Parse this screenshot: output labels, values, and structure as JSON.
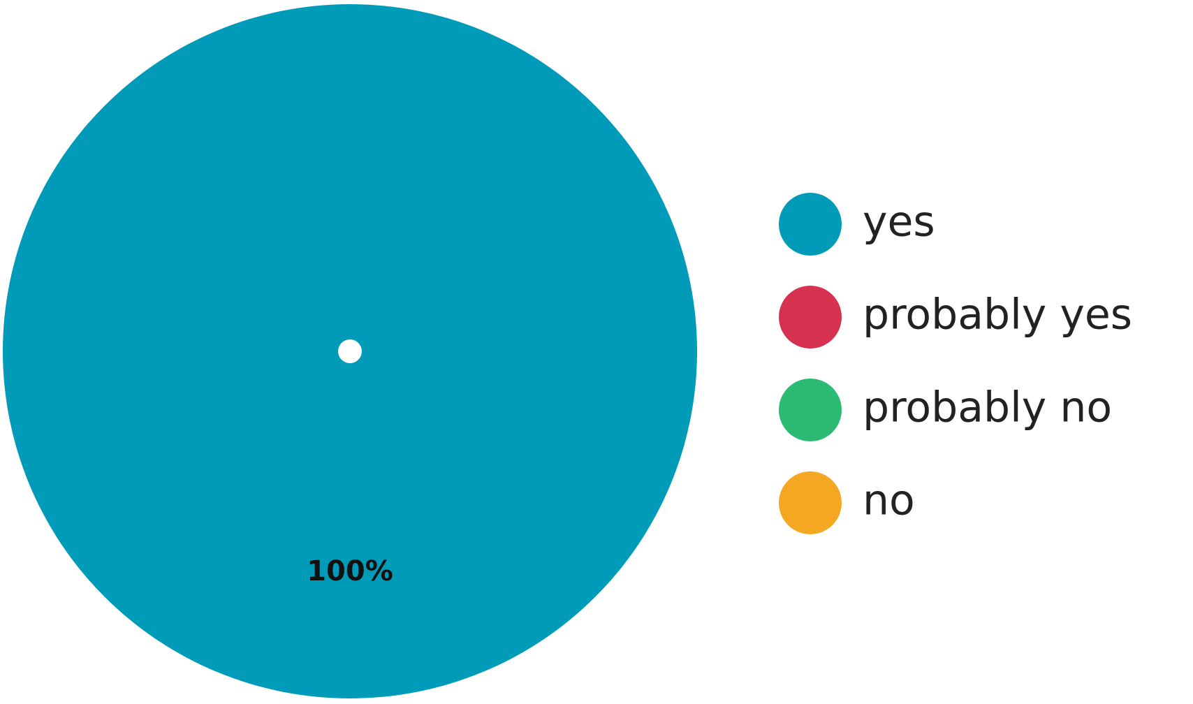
{
  "chart_data": {
    "type": "pie",
    "title": "",
    "categories": [
      "yes",
      "probably yes",
      "probably no",
      "no"
    ],
    "values": [
      100,
      0,
      0,
      0
    ],
    "value_unit": "%",
    "data_labels": [
      "100%",
      "",
      "",
      ""
    ],
    "colors": [
      "#009bb8",
      "#d6314f",
      "#2bbb72",
      "#f3a722"
    ],
    "legend": {
      "placement": "right",
      "entries": [
        "yes",
        "probably yes",
        "probably no",
        "no"
      ]
    },
    "center_dot": true
  }
}
